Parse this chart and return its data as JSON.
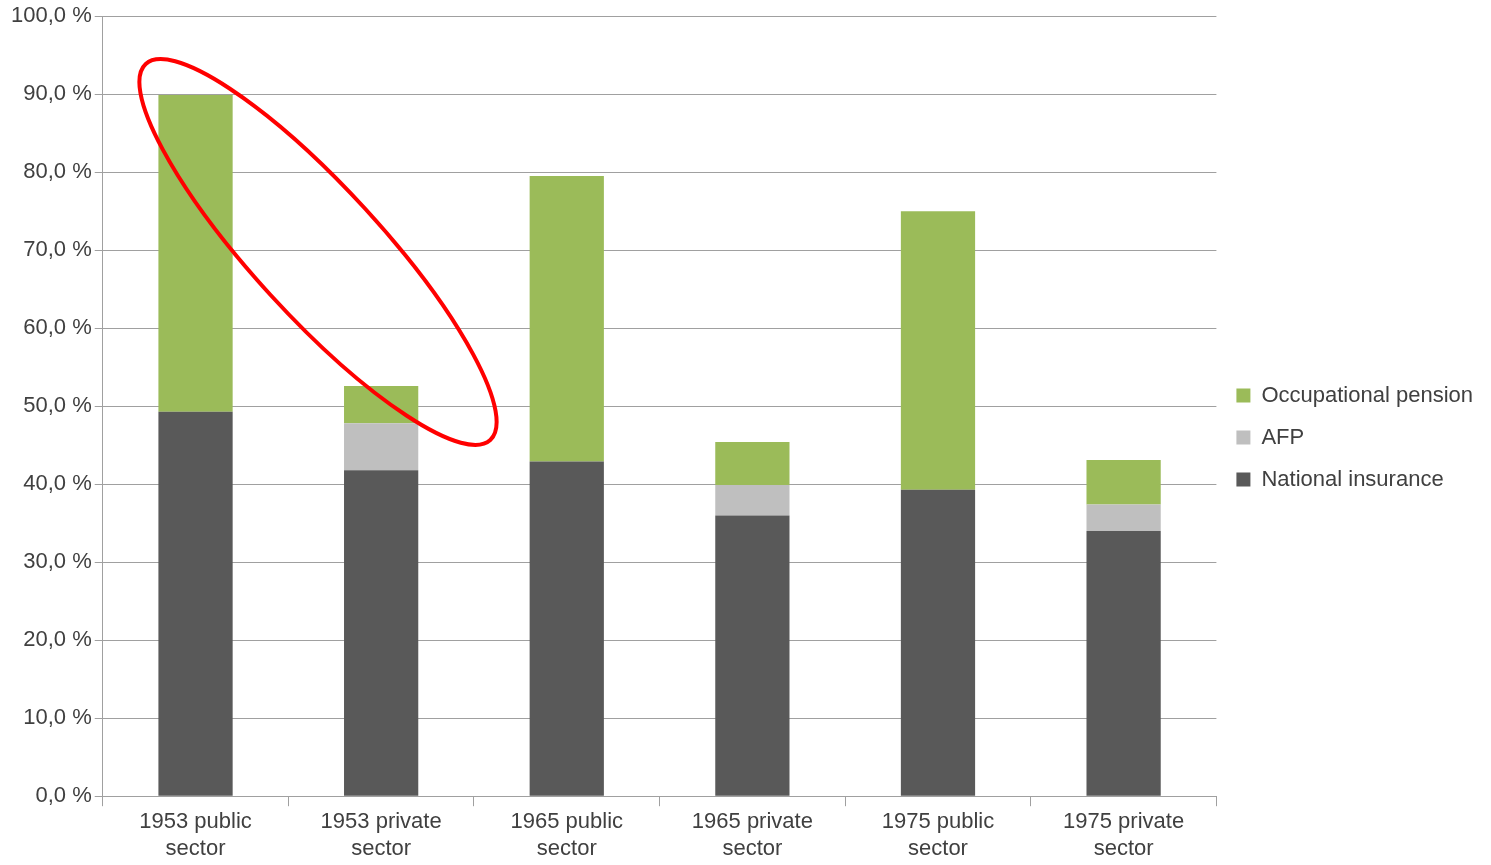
{
  "chart_data": {
    "type": "bar",
    "stacked": true,
    "categories": [
      "1953 public sector",
      "1953 private sector",
      "1965 public sector",
      "1965 private sector",
      "1975 public sector",
      "1975 private sector"
    ],
    "series": [
      {
        "name": "National insurance",
        "color": "#595959",
        "values": [
          49.3,
          41.8,
          42.9,
          36.0,
          39.3,
          34.0
        ]
      },
      {
        "name": "AFP",
        "color": "#bfbfbf",
        "values": [
          0,
          6.0,
          0,
          3.9,
          0,
          3.4
        ]
      },
      {
        "name": "Occupational pension",
        "color": "#9bbb59",
        "values": [
          40.6,
          4.8,
          36.6,
          5.5,
          35.7,
          5.7
        ]
      }
    ],
    "ylim": [
      0,
      100
    ],
    "yticks": [
      {
        "value": 0,
        "label": "0,0 %"
      },
      {
        "value": 10,
        "label": "10,0 %"
      },
      {
        "value": 20,
        "label": "20,0 %"
      },
      {
        "value": 30,
        "label": "30,0 %"
      },
      {
        "value": 40,
        "label": "40,0 %"
      },
      {
        "value": 50,
        "label": "50,0 %"
      },
      {
        "value": 60,
        "label": "60,0 %"
      },
      {
        "value": 70,
        "label": "70,0 %"
      },
      {
        "value": 80,
        "label": "80,0 %"
      },
      {
        "value": 90,
        "label": "90,0 %"
      },
      {
        "value": 100,
        "label": "100,0 %"
      }
    ],
    "grid": "y",
    "legend": "right"
  }
}
